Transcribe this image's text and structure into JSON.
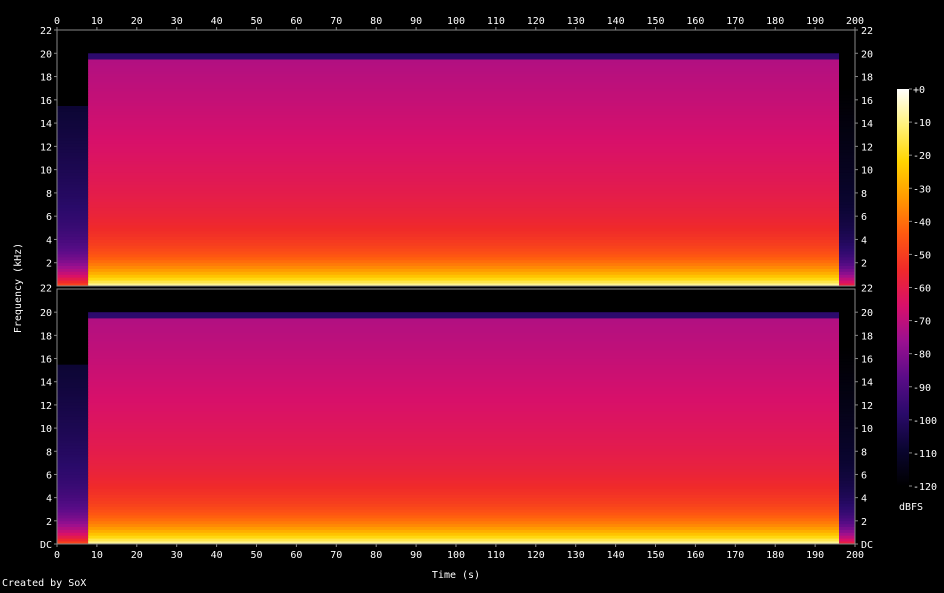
{
  "chart_data": {
    "type": "heatmap",
    "title": "",
    "xlabel": "Time (s)",
    "ylabel": "Frequency (kHz)",
    "xlim": [
      0,
      200
    ],
    "ylim": [
      0,
      22
    ],
    "x_ticks": [
      0,
      10,
      20,
      30,
      40,
      50,
      60,
      70,
      80,
      90,
      100,
      110,
      120,
      130,
      140,
      150,
      160,
      170,
      180,
      190,
      200
    ],
    "y_ticks": [
      0,
      2,
      4,
      6,
      8,
      10,
      12,
      14,
      16,
      18,
      20,
      22
    ],
    "y_tick_labels": [
      "DC",
      "2",
      "4",
      "6",
      "8",
      "10",
      "12",
      "14",
      "16",
      "18",
      "20",
      "22"
    ],
    "channels": 2,
    "colorbar": {
      "label": "dBFS",
      "ticks": [
        0,
        -10,
        -20,
        -30,
        -40,
        -50,
        -60,
        -70,
        -80,
        -90,
        -100,
        -110,
        -120
      ],
      "tick_labels": [
        "+0",
        "-10",
        "-20",
        "-30",
        "-40",
        "-50",
        "-60",
        "-70",
        "-80",
        "-90",
        "-100",
        "-110",
        "-120"
      ],
      "range": [
        -120,
        0
      ]
    },
    "segments": [
      {
        "t_start": 0,
        "t_end": 7.8,
        "bandwidth_khz": 16,
        "level_dbfs": -95
      },
      {
        "t_start": 7.8,
        "t_end": 196,
        "bandwidth_khz": 20,
        "level_dbfs": -55
      },
      {
        "t_start": 196,
        "t_end": 200,
        "bandwidth_khz": 20,
        "level_dbfs": -105
      }
    ],
    "colormap": [
      "#000000",
      "#0a0530",
      "#2a0a6a",
      "#5a0c88",
      "#9a1090",
      "#d8106a",
      "#f02a2a",
      "#ff5a10",
      "#ff9a00",
      "#ffd400",
      "#fff27a",
      "#ffffff"
    ]
  },
  "footer": {
    "credit": "Created by SoX"
  }
}
